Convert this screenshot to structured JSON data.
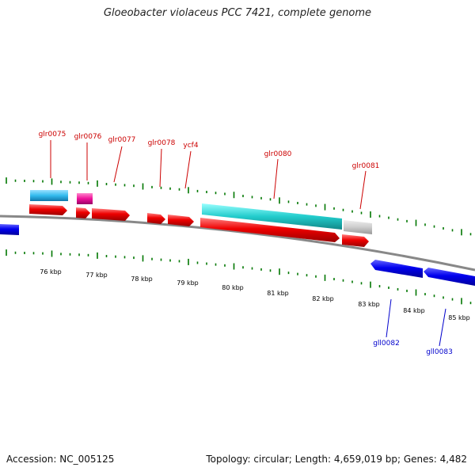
{
  "title": "Gloeobacter violaceus PCC 7421, complete genome",
  "footer": {
    "accession": "Accession: NC_005125",
    "summary": "Topology: circular; Length: 4,659,019 bp; Genes: 4,482"
  },
  "scale": {
    "ticks": [
      "76 kbp",
      "77 kbp",
      "78 kbp",
      "79 kbp",
      "80 kbp",
      "81 kbp",
      "82 kbp",
      "83 kbp",
      "84 kbp",
      "85 kbp"
    ],
    "tick_color": "#007700"
  },
  "colors": {
    "forward_gene": "#ee0000",
    "reverse_gene": "#0000ee",
    "forward_label": "#cc0000",
    "reverse_label": "#0000cc",
    "backbone": "#888888"
  },
  "genes": {
    "forward": [
      "glr0075",
      "glr0076",
      "glr0077",
      "glr0078",
      "ycf4",
      "glr0080",
      "glr0081"
    ],
    "reverse": [
      "gll0082",
      "gll0083"
    ]
  }
}
